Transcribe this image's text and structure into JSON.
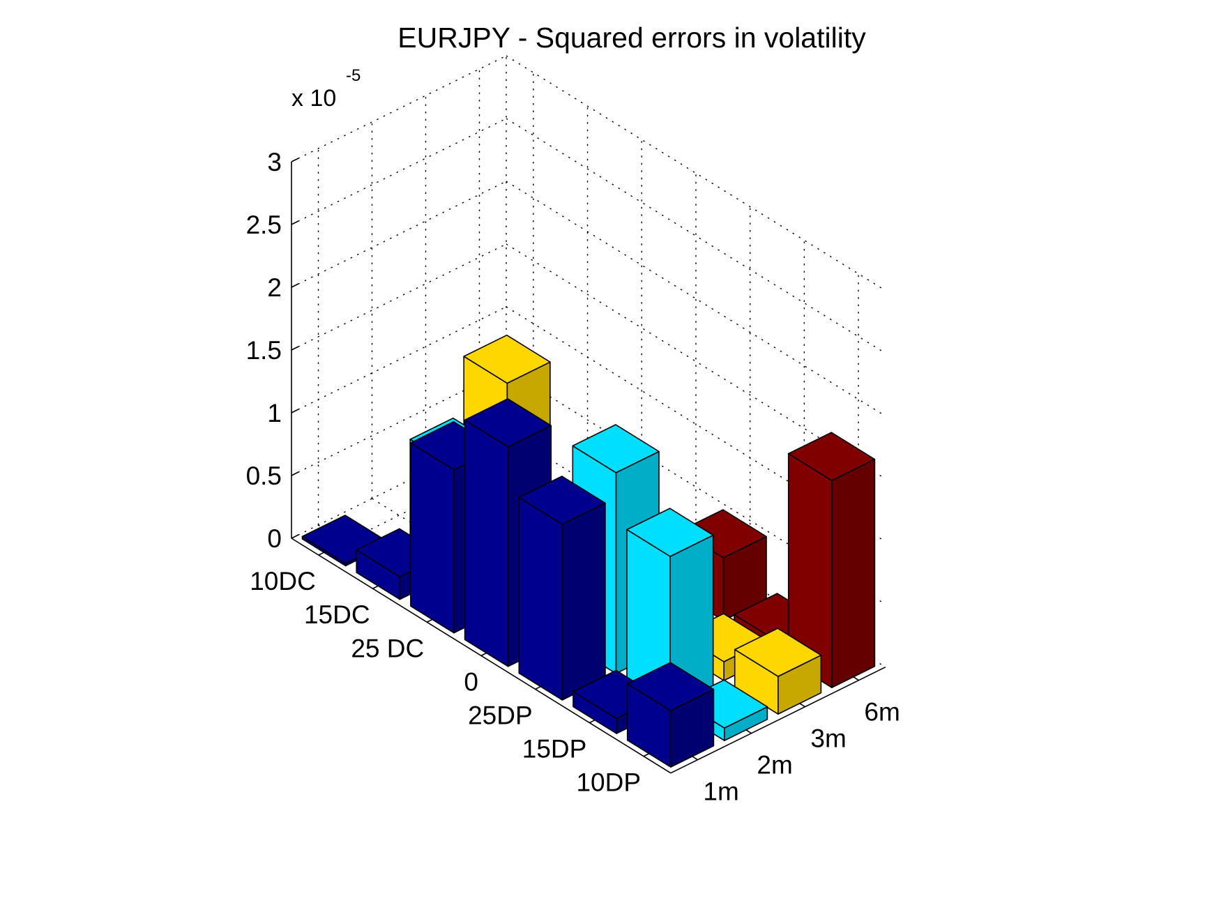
{
  "chart_data": {
    "type": "bar3",
    "title": "EURJPY - Squared errors in volatility",
    "z_exponent_label": "x 10",
    "z_exponent_power": "-5",
    "x_categories": [
      "1m",
      "2m",
      "3m",
      "6m"
    ],
    "y_categories": [
      "10DC",
      "15DC",
      "25 DC",
      "0",
      "25DP",
      "15DP",
      "10DP"
    ],
    "z_ticks": [
      "0",
      "0.5",
      "1",
      "1.5",
      "2",
      "2.5",
      "3"
    ],
    "z_tick_values": [
      0,
      0.5,
      1,
      1.5,
      2,
      2.5,
      3
    ],
    "zlim": [
      0,
      3
    ],
    "grid": true,
    "colors": {
      "1m": "#00008f",
      "2m": "#00dfff",
      "3m": "#ffd700",
      "6m": "#800000"
    },
    "series": [
      {
        "x": "1m",
        "values": [
          0.02,
          0.18,
          1.3,
          1.75,
          1.4,
          0.12,
          0.45
        ]
      },
      {
        "x": "2m",
        "values": [
          0,
          0.85,
          0,
          0,
          1.6,
          1.2,
          0.1
        ]
      },
      {
        "x": "3m",
        "values": [
          0,
          1.3,
          0.3,
          0,
          0.2,
          0.15,
          0.3
        ]
      },
      {
        "x": "6m",
        "values": [
          0,
          0,
          0,
          0,
          0.5,
          0.1,
          1.65
        ]
      }
    ]
  }
}
